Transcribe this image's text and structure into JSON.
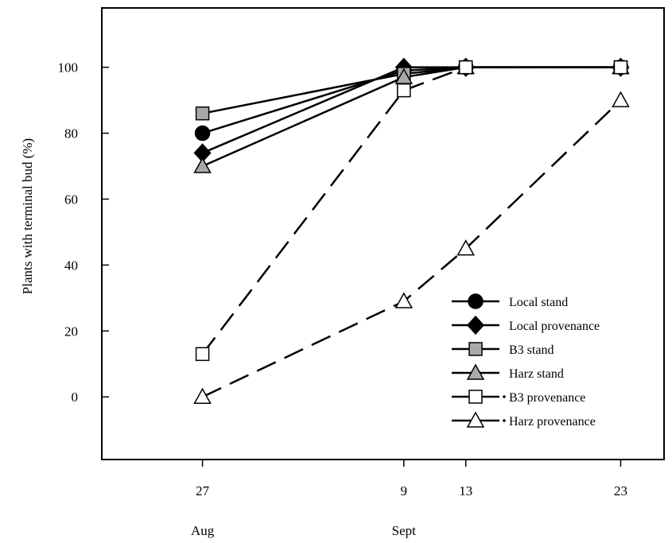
{
  "chart_data": {
    "type": "line",
    "ylabel": "Plants with terminal bud (%)",
    "ylim": [
      -19,
      118
    ],
    "yticks": [
      0,
      20,
      40,
      60,
      80,
      100
    ],
    "x_ticks": [
      {
        "day": 27,
        "label": "27",
        "month": "Aug"
      },
      {
        "day": 40,
        "label": "9",
        "month": "Sept"
      },
      {
        "day": 44,
        "label": "13",
        "month": ""
      },
      {
        "day": 54,
        "label": "23",
        "month": ""
      }
    ],
    "xlim": [
      20.5,
      56.8
    ],
    "legend_position": "bottom-right",
    "series": [
      {
        "name": "Local stand",
        "marker": "circle",
        "fill": "#000000",
        "dash": "solid",
        "x": [
          27,
          40,
          44,
          54
        ],
        "y": [
          80,
          99,
          100,
          100
        ]
      },
      {
        "name": "Local provenance",
        "marker": "diamond",
        "fill": "#000000",
        "dash": "solid",
        "x": [
          27,
          40,
          44,
          54
        ],
        "y": [
          74,
          100,
          100,
          100
        ]
      },
      {
        "name": "B3 stand",
        "marker": "square",
        "fill": "#a9a9a9",
        "dash": "solid",
        "x": [
          27,
          40,
          44,
          54
        ],
        "y": [
          86,
          98,
          100,
          100
        ]
      },
      {
        "name": "Harz stand",
        "marker": "triangle",
        "fill": "#a9a9a9",
        "dash": "solid",
        "x": [
          27,
          40,
          44,
          54
        ],
        "y": [
          70,
          97,
          100,
          100
        ]
      },
      {
        "name": "B3 provenance",
        "marker": "square",
        "fill": "#ffffff",
        "dash": "dashed",
        "x": [
          27,
          40,
          44,
          54
        ],
        "y": [
          13,
          93,
          100,
          100
        ]
      },
      {
        "name": "Harz provenance",
        "marker": "triangle",
        "fill": "#ffffff",
        "dash": "dashed",
        "x": [
          27,
          40,
          44,
          54
        ],
        "y": [
          0,
          29,
          45,
          90
        ]
      }
    ]
  }
}
